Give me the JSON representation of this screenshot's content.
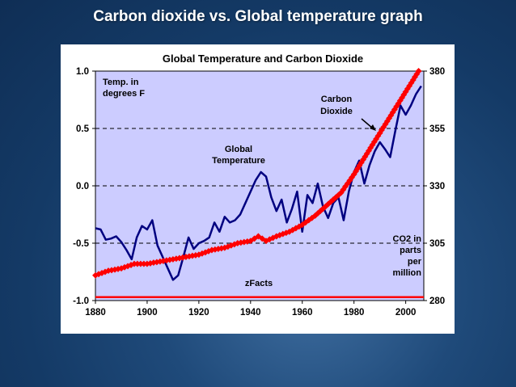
{
  "slide": {
    "title": "Carbon dioxide vs. Global temperature graph"
  },
  "colors": {
    "plot_bg": "#ccccff",
    "temperature": "#000080",
    "co2": "#ff0000",
    "baseline": "#ff0000"
  },
  "chart_data": {
    "type": "line",
    "title": "Global Temperature and Carbon Dioxide",
    "x_ticks": [
      1880,
      1900,
      1920,
      1940,
      1960,
      1980,
      2000
    ],
    "xlim": [
      1880,
      2007
    ],
    "y_left": {
      "label": "Temp. in degrees F",
      "ticks": [
        "1.0",
        "0.5",
        "0.0",
        "-0.5",
        "-1.0"
      ],
      "lim": [
        -1.0,
        1.0
      ]
    },
    "y_right": {
      "label": "CO2 in parts per million",
      "ticks": [
        "380",
        "355",
        "330",
        "305",
        "280"
      ],
      "lim": [
        280,
        380
      ]
    },
    "annotations": {
      "temp_label": "Temp. in degrees F",
      "co2_units": "CO2 in parts per million",
      "global_temp": "Global Temperature",
      "carbon_dioxide": "Carbon Dioxide",
      "source": "zFacts"
    },
    "baseline_value": -0.97,
    "series": [
      {
        "name": "Global Temperature",
        "axis": "left",
        "x": [
          1880,
          1882,
          1884,
          1886,
          1888,
          1890,
          1892,
          1894,
          1896,
          1898,
          1900,
          1902,
          1904,
          1906,
          1908,
          1910,
          1912,
          1914,
          1916,
          1918,
          1920,
          1922,
          1924,
          1926,
          1928,
          1930,
          1932,
          1934,
          1936,
          1938,
          1940,
          1942,
          1944,
          1946,
          1948,
          1950,
          1952,
          1954,
          1956,
          1958,
          1960,
          1962,
          1964,
          1966,
          1968,
          1970,
          1972,
          1974,
          1976,
          1978,
          1980,
          1982,
          1984,
          1986,
          1988,
          1990,
          1992,
          1994,
          1996,
          1998,
          2000,
          2002,
          2004,
          2006
        ],
        "values": [
          -0.37,
          -0.38,
          -0.47,
          -0.46,
          -0.44,
          -0.49,
          -0.56,
          -0.64,
          -0.45,
          -0.35,
          -0.38,
          -0.3,
          -0.52,
          -0.62,
          -0.72,
          -0.82,
          -0.78,
          -0.62,
          -0.45,
          -0.55,
          -0.5,
          -0.48,
          -0.45,
          -0.32,
          -0.4,
          -0.27,
          -0.32,
          -0.3,
          -0.25,
          -0.15,
          -0.05,
          0.05,
          0.12,
          0.08,
          -0.1,
          -0.22,
          -0.12,
          -0.32,
          -0.2,
          -0.05,
          -0.4,
          -0.08,
          -0.15,
          0.02,
          -0.18,
          -0.28,
          -0.15,
          -0.1,
          -0.3,
          -0.05,
          0.12,
          0.22,
          0.02,
          0.18,
          0.3,
          0.38,
          0.32,
          0.25,
          0.48,
          0.7,
          0.62,
          0.7,
          0.8,
          0.87
        ]
      },
      {
        "name": "Carbon Dioxide",
        "axis": "right",
        "x": [
          1880,
          1885,
          1890,
          1895,
          1900,
          1905,
          1910,
          1915,
          1920,
          1925,
          1930,
          1935,
          1940,
          1943,
          1946,
          1950,
          1955,
          1960,
          1965,
          1970,
          1975,
          1980,
          1985,
          1990,
          1995,
          2000,
          2005
        ],
        "values": [
          291,
          293,
          294,
          296,
          296,
          297,
          298,
          299,
          300,
          302,
          303,
          305,
          306,
          308,
          306,
          308,
          310,
          313,
          317,
          322,
          327,
          335,
          344,
          353,
          362,
          371,
          380
        ]
      }
    ]
  }
}
